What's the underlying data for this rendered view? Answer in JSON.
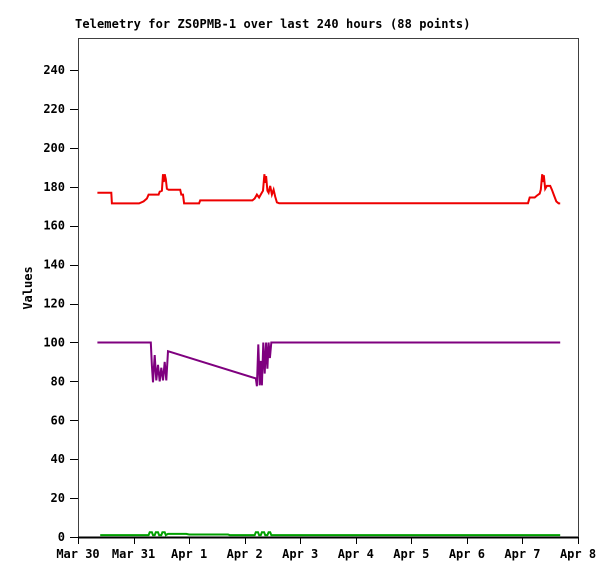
{
  "chart_data": {
    "type": "line",
    "title": "Telemetry for ZS0PMB-1 over last 240 hours (88 points)",
    "xlabel": "",
    "ylabel": "Values",
    "ylim": [
      0,
      256.5
    ],
    "xlim": [
      0,
      9
    ],
    "grid": false,
    "legend": "none",
    "background": "#ffffff",
    "frame_color": "#404040",
    "axis_color": "#000000",
    "text_color": "#000000",
    "y_ticks": [
      0,
      20,
      40,
      60,
      80,
      100,
      120,
      140,
      160,
      180,
      200,
      220,
      240
    ],
    "x_ticks": [
      {
        "pos": 0,
        "label": "Mar 30"
      },
      {
        "pos": 1,
        "label": "Mar 31"
      },
      {
        "pos": 2,
        "label": "Apr 1"
      },
      {
        "pos": 3,
        "label": "Apr 2"
      },
      {
        "pos": 4,
        "label": "Apr 3"
      },
      {
        "pos": 5,
        "label": "Apr 4"
      },
      {
        "pos": 6,
        "label": "Apr 5"
      },
      {
        "pos": 7,
        "label": "Apr 6"
      },
      {
        "pos": 8,
        "label": "Apr 7"
      },
      {
        "pos": 9,
        "label": "Apr 8"
      }
    ],
    "x_unit": "days since Mar 30 00:00",
    "series": [
      {
        "name": "red",
        "color": "#ee0000",
        "points": [
          [
            0.35,
            177
          ],
          [
            0.6,
            177
          ],
          [
            0.61,
            171.5
          ],
          [
            1.1,
            171.5
          ],
          [
            1.18,
            172.5
          ],
          [
            1.24,
            174
          ],
          [
            1.27,
            176
          ],
          [
            1.45,
            176
          ],
          [
            1.47,
            177.5
          ],
          [
            1.51,
            178
          ],
          [
            1.53,
            186.5
          ],
          [
            1.545,
            182.5
          ],
          [
            1.56,
            186.5
          ],
          [
            1.58,
            184
          ],
          [
            1.6,
            179
          ],
          [
            1.63,
            178.5
          ],
          [
            1.84,
            178.5
          ],
          [
            1.86,
            176
          ],
          [
            1.89,
            176
          ],
          [
            1.91,
            171.5
          ],
          [
            2.18,
            171.5
          ],
          [
            2.2,
            173
          ],
          [
            3.14,
            173
          ],
          [
            3.18,
            174
          ],
          [
            3.22,
            176
          ],
          [
            3.26,
            174.5
          ],
          [
            3.3,
            176.5
          ],
          [
            3.33,
            178
          ],
          [
            3.355,
            186.5
          ],
          [
            3.37,
            182
          ],
          [
            3.385,
            185.5
          ],
          [
            3.41,
            178
          ],
          [
            3.43,
            177
          ],
          [
            3.46,
            180.5
          ],
          [
            3.49,
            176
          ],
          [
            3.52,
            178.5
          ],
          [
            3.55,
            175
          ],
          [
            3.58,
            172
          ],
          [
            3.62,
            171.6
          ],
          [
            8.1,
            171.6
          ],
          [
            8.13,
            174.5
          ],
          [
            8.22,
            174.5
          ],
          [
            8.26,
            175.5
          ],
          [
            8.31,
            176.5
          ],
          [
            8.33,
            178.5
          ],
          [
            8.355,
            186.5
          ],
          [
            8.37,
            182.5
          ],
          [
            8.385,
            186
          ],
          [
            8.41,
            179
          ],
          [
            8.44,
            180.5
          ],
          [
            8.5,
            180.5
          ],
          [
            8.53,
            178.5
          ],
          [
            8.57,
            175.5
          ],
          [
            8.61,
            172.5
          ],
          [
            8.65,
            171.5
          ],
          [
            8.68,
            171.5
          ]
        ]
      },
      {
        "name": "purple",
        "color": "#7f007f",
        "points": [
          [
            0.35,
            100
          ],
          [
            1.31,
            100
          ],
          [
            1.33,
            88
          ],
          [
            1.35,
            79.5
          ],
          [
            1.38,
            93.5
          ],
          [
            1.41,
            80.5
          ],
          [
            1.44,
            88.5
          ],
          [
            1.47,
            80
          ],
          [
            1.5,
            87
          ],
          [
            1.53,
            80.5
          ],
          [
            1.56,
            90
          ],
          [
            1.59,
            80.5
          ],
          [
            1.62,
            95.5
          ],
          [
            3.2,
            81.5
          ],
          [
            3.22,
            77.5
          ],
          [
            3.245,
            99
          ],
          [
            3.27,
            78
          ],
          [
            3.29,
            90.5
          ],
          [
            3.31,
            78
          ],
          [
            3.335,
            100
          ],
          [
            3.36,
            84
          ],
          [
            3.385,
            100
          ],
          [
            3.41,
            86.5
          ],
          [
            3.43,
            100
          ],
          [
            3.455,
            92
          ],
          [
            3.48,
            100
          ],
          [
            8.68,
            100
          ]
        ]
      },
      {
        "name": "green",
        "color": "#00a000",
        "points": [
          [
            0.4,
            1
          ],
          [
            1.27,
            1
          ],
          [
            1.29,
            2.4
          ],
          [
            1.33,
            2.4
          ],
          [
            1.35,
            1
          ],
          [
            1.38,
            1
          ],
          [
            1.4,
            2.4
          ],
          [
            1.44,
            2.4
          ],
          [
            1.46,
            1
          ],
          [
            1.5,
            1
          ],
          [
            1.52,
            2.4
          ],
          [
            1.56,
            2.4
          ],
          [
            1.58,
            1
          ],
          [
            1.62,
            1.6
          ],
          [
            1.95,
            1.6
          ],
          [
            2.0,
            1.3
          ],
          [
            2.7,
            1.3
          ],
          [
            2.73,
            1
          ],
          [
            3.18,
            1
          ],
          [
            3.2,
            2.4
          ],
          [
            3.24,
            2.4
          ],
          [
            3.26,
            1
          ],
          [
            3.29,
            1
          ],
          [
            3.31,
            2.4
          ],
          [
            3.35,
            2.4
          ],
          [
            3.37,
            1
          ],
          [
            3.41,
            1
          ],
          [
            3.43,
            2.4
          ],
          [
            3.46,
            2.4
          ],
          [
            3.48,
            1
          ],
          [
            8.68,
            1
          ]
        ]
      }
    ]
  }
}
